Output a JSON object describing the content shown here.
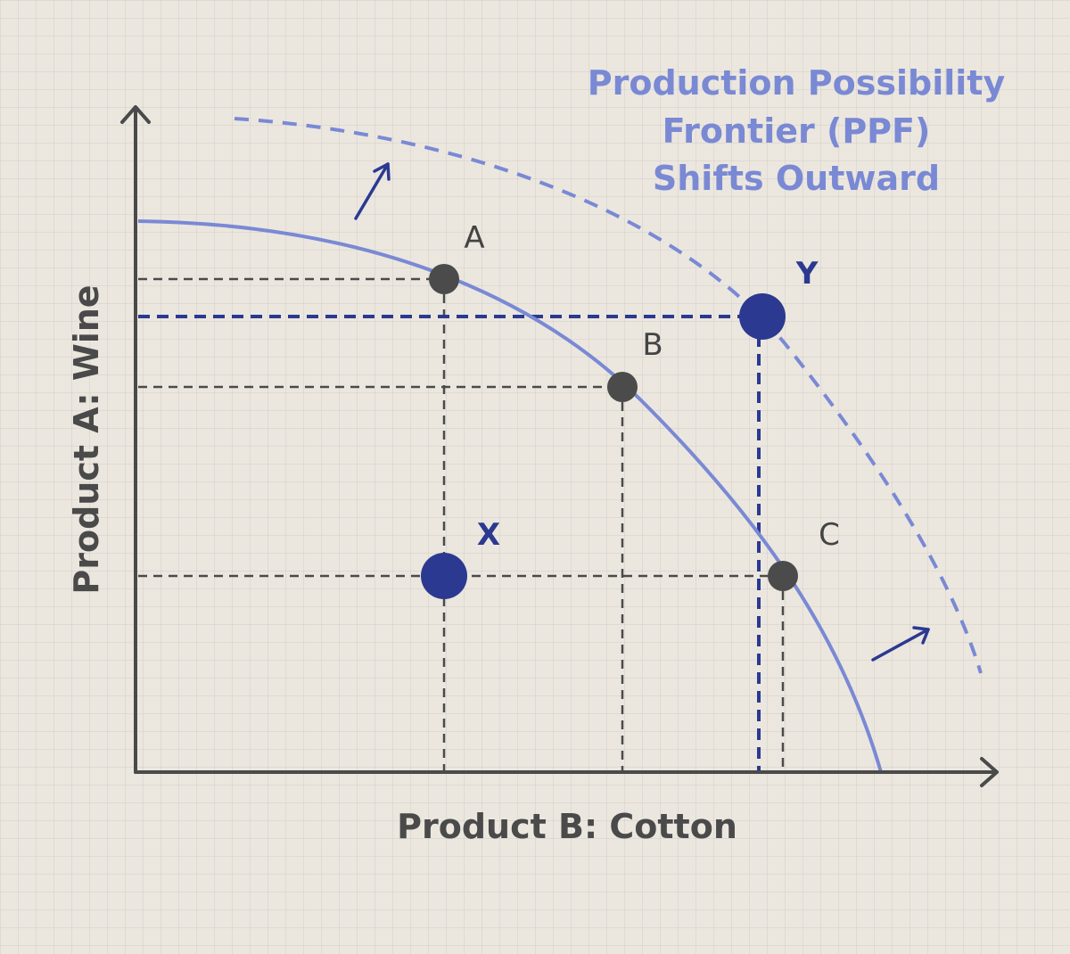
{
  "title_lines": [
    "Production Possibility",
    "Frontier (PPF)",
    "Shifts Outward"
  ],
  "x_axis_label": "Product B: Cotton",
  "y_axis_label": "Product A: Wine",
  "points": [
    {
      "id": "A",
      "label": "A",
      "kind": "on-curve"
    },
    {
      "id": "B",
      "label": "B",
      "kind": "on-curve"
    },
    {
      "id": "C",
      "label": "C",
      "kind": "on-curve"
    },
    {
      "id": "X",
      "label": "X",
      "kind": "inside"
    },
    {
      "id": "Y",
      "label": "Y",
      "kind": "outside"
    }
  ],
  "colors": {
    "axis": "#4a4a4a",
    "ppf_curve": "#7a89d4",
    "shifted_curve": "#7a89d4",
    "title": "#7a89d4",
    "point_gray": "#4b4b4b",
    "point_blue": "#2b3990",
    "guide_gray": "#4a4a4a",
    "guide_blue": "#2b3990",
    "arrow": "#2b3990",
    "label": "#444444"
  },
  "icons": [
    "shift-arrow-icon",
    "shift-arrow-icon"
  ]
}
